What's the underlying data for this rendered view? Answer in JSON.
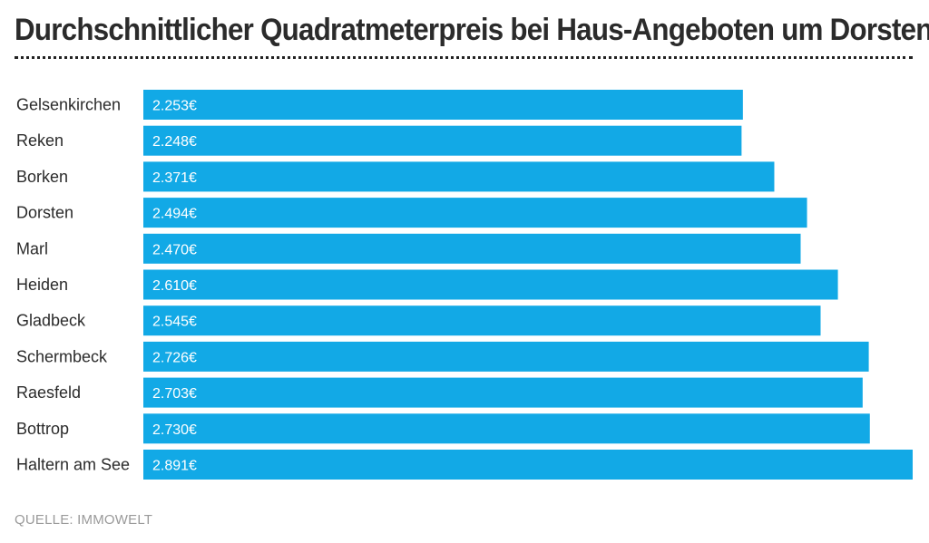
{
  "chart_data": {
    "type": "bar",
    "orientation": "horizontal",
    "title": "Durchschnittlicher Quadratmeterpreis bei Haus-Angeboten um Dorsten",
    "categories": [
      "Gelsenkirchen",
      "Reken",
      "Borken",
      "Dorsten",
      "Marl",
      "Heiden",
      "Gladbeck",
      "Schermbeck",
      "Raesfeld",
      "Bottrop",
      "Haltern am See"
    ],
    "values": [
      2253,
      2248,
      2371,
      2494,
      2470,
      2610,
      2545,
      2726,
      2703,
      2730,
      2891
    ],
    "value_labels": [
      "2.253€",
      "2.248€",
      "2.371€",
      "2.494€",
      "2.470€",
      "2.610€",
      "2.545€",
      "2.726€",
      "2.703€",
      "2.730€",
      "2.891€"
    ],
    "unit": "€",
    "xlabel": "",
    "ylabel": "",
    "grid": false,
    "source": "QUELLE: IMMOWELT"
  },
  "colors": {
    "bar": "#12a9e6",
    "text": "#2b2b2b",
    "source": "#9a9a9a"
  }
}
